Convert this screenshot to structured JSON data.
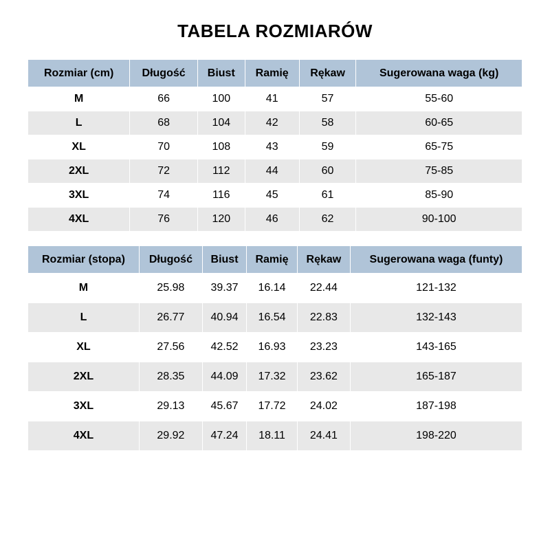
{
  "title": "TABELA ROZMIARÓW",
  "table1": {
    "type": "table",
    "header_bg": "#b0c4d8",
    "row_odd_bg": "#ffffff",
    "row_even_bg": "#e8e8e8",
    "columns": [
      "Rozmiar (cm)",
      "Długość",
      "Biust",
      "Ramię",
      "Rękaw",
      "Sugerowana waga (kg)"
    ],
    "rows": [
      [
        "M",
        "66",
        "100",
        "41",
        "57",
        "55-60"
      ],
      [
        "L",
        "68",
        "104",
        "42",
        "58",
        "60-65"
      ],
      [
        "XL",
        "70",
        "108",
        "43",
        "59",
        "65-75"
      ],
      [
        "2XL",
        "72",
        "112",
        "44",
        "60",
        "75-85"
      ],
      [
        "3XL",
        "74",
        "116",
        "45",
        "61",
        "85-90"
      ],
      [
        "4XL",
        "76",
        "120",
        "46",
        "62",
        "90-100"
      ]
    ]
  },
  "table2": {
    "type": "table",
    "header_bg": "#b0c4d8",
    "row_odd_bg": "#ffffff",
    "row_even_bg": "#e8e8e8",
    "columns": [
      "Rozmiar (stopa)",
      "Długość",
      "Biust",
      "Ramię",
      "Rękaw",
      "Sugerowana waga (funty)"
    ],
    "rows": [
      [
        "M",
        "25.98",
        "39.37",
        "16.14",
        "22.44",
        "121-132"
      ],
      [
        "L",
        "26.77",
        "40.94",
        "16.54",
        "22.83",
        "132-143"
      ],
      [
        "XL",
        "27.56",
        "42.52",
        "16.93",
        "23.23",
        "143-165"
      ],
      [
        "2XL",
        "28.35",
        "44.09",
        "17.32",
        "23.62",
        "165-187"
      ],
      [
        "3XL",
        "29.13",
        "45.67",
        "17.72",
        "24.02",
        "187-198"
      ],
      [
        "4XL",
        "29.92",
        "47.24",
        "18.11",
        "24.41",
        "198-220"
      ]
    ]
  }
}
